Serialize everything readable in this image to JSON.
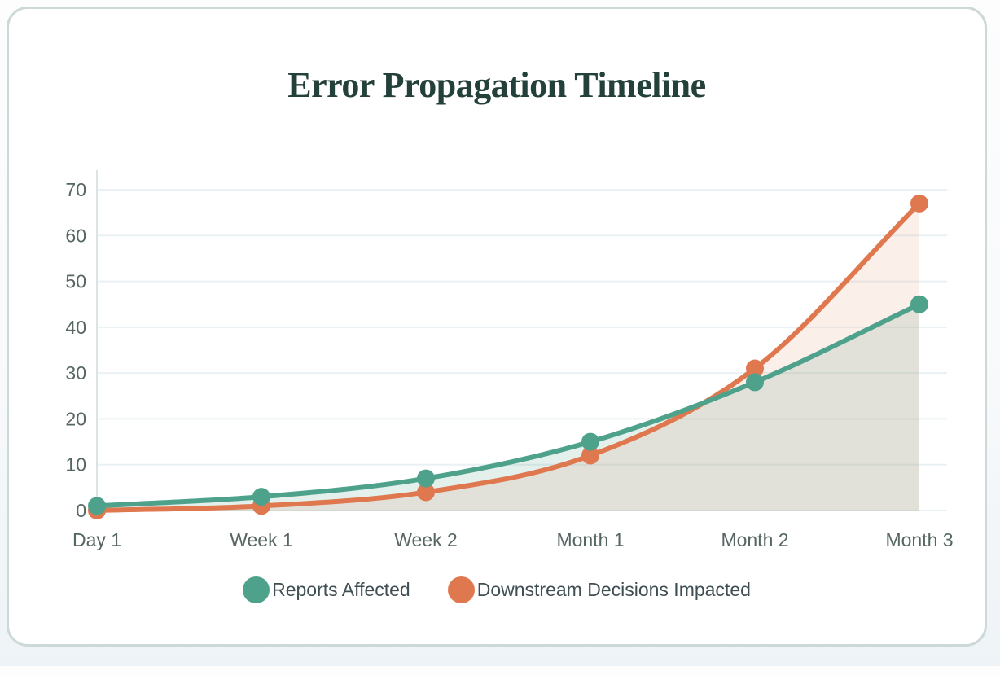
{
  "page": {
    "title": "Error Propagation Timeline"
  },
  "chart_data": {
    "type": "line",
    "title": "Error Propagation Timeline",
    "categories": [
      "Day 1",
      "Week 1",
      "Week 2",
      "Month 1",
      "Month 2",
      "Month 3"
    ],
    "series": [
      {
        "name": "Reports Affected",
        "color": "#4EA28B",
        "fill_opacity": 0.16,
        "values": [
          1,
          3,
          7,
          15,
          28,
          45
        ]
      },
      {
        "name": "Downstream Decisions Impacted",
        "color": "#E0784F",
        "fill_opacity": 0.12,
        "values": [
          0,
          1,
          4,
          12,
          31,
          67
        ]
      }
    ],
    "xlabel": "",
    "ylabel": "",
    "ylim": [
      0,
      70
    ],
    "yticks": [
      0,
      10,
      20,
      30,
      40,
      50,
      60,
      70
    ],
    "grid": "horizontal",
    "area_fill": true,
    "smooth": true,
    "legend_position": "bottom"
  },
  "ui": {
    "title_color": "#24403A",
    "axis_text_color": "#566663",
    "legend_text_color": "#3F4E52",
    "grid_color": "#EAF1F4",
    "axis_line_color": "#DBE4E3",
    "card_border_color": "#CCD9D6",
    "card_bg": "#FFFFFF"
  }
}
